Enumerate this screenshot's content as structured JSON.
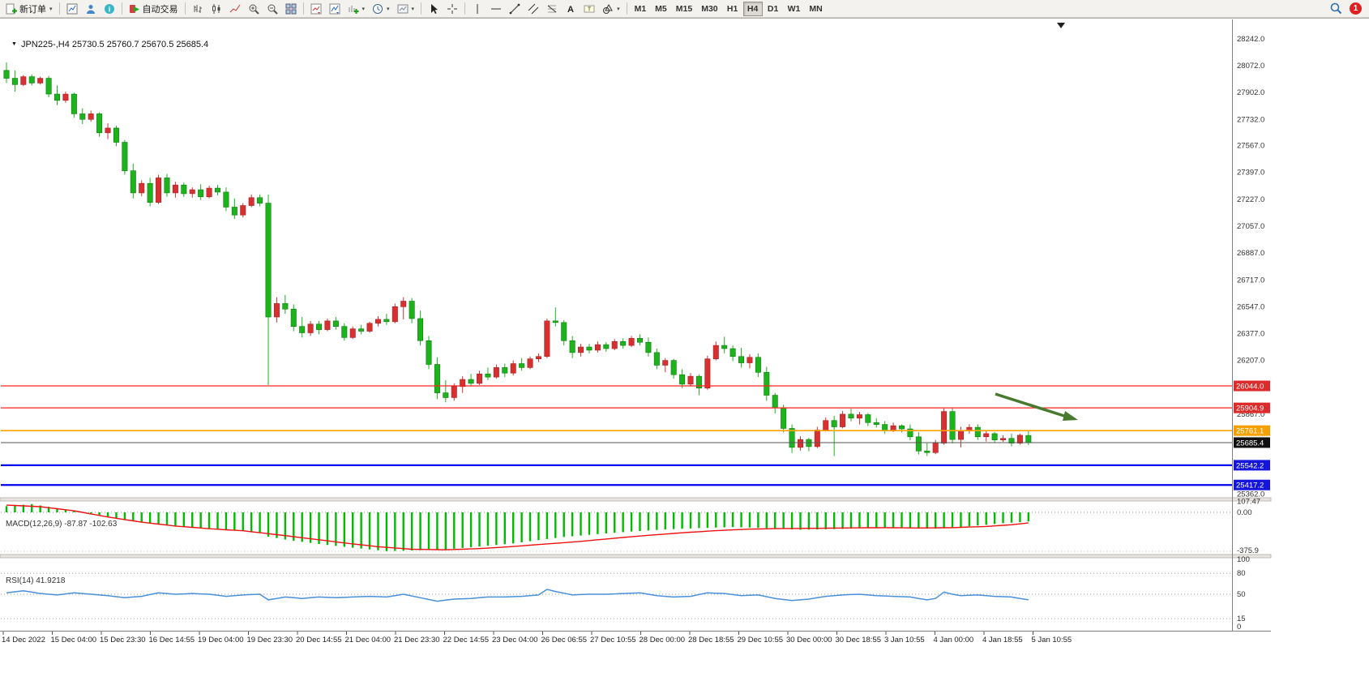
{
  "toolbar": {
    "new_order_label": "新订单",
    "auto_trading_label": "自动交易",
    "timeframes": [
      "M1",
      "M5",
      "M15",
      "M30",
      "H1",
      "H4",
      "D1",
      "W1",
      "MN"
    ],
    "active_timeframe": "H4",
    "notification_count": "1"
  },
  "chart_data": {
    "type": "candlestick",
    "header": "JPN225-,H4  25730.5 25760.7 25670.5 25685.4",
    "symbol": "JPN225-",
    "timeframe": "H4",
    "ohlc_current": {
      "open": 25730.5,
      "high": 25760.7,
      "low": 25670.5,
      "close": 25685.4
    },
    "up_color": "#d83030",
    "down_color": "#1db31d",
    "arrow_color": "#477a2d",
    "price_axis": [
      28242,
      28072,
      27902,
      27732,
      27567,
      27397,
      27227,
      27057,
      26887,
      26717,
      26547,
      26377,
      26207,
      25867,
      25362
    ],
    "hlines": [
      {
        "price": 26044.0,
        "label": "26044.0",
        "color": "#ff2222",
        "badge": "#dd2a2a",
        "width": 1.3
      },
      {
        "price": 25904.9,
        "label": "25904.9",
        "color": "#ff2222",
        "badge": "#dd2a2a",
        "width": 1.3
      },
      {
        "price": 25761.1,
        "label": "25761.1",
        "color": "#ffa200",
        "badge": "#f5a000",
        "width": 1.6
      },
      {
        "price": 25542.2,
        "label": "25542.2",
        "color": "#0000ee",
        "badge": "#1515dd",
        "width": 2.2
      },
      {
        "price": 25417.2,
        "label": "25417.2",
        "color": "#0000ee",
        "badge": "#1515dd",
        "width": 2.2
      }
    ],
    "bid_line": {
      "price": 25685.4,
      "label": "25685.4",
      "line_color": "#555555",
      "badge": "#101010"
    },
    "time_labels": [
      "14 Dec 2022",
      "15 Dec 04:00",
      "15 Dec 23:30",
      "16 Dec 14:55",
      "19 Dec 04:00",
      "19 Dec 23:30",
      "20 Dec 14:55",
      "21 Dec 04:00",
      "21 Dec 23:30",
      "22 Dec 14:55",
      "23 Dec 04:00",
      "26 Dec 06:55",
      "27 Dec 10:55",
      "28 Dec 00:00",
      "28 Dec 18:55",
      "29 Dec 10:55",
      "30 Dec 00:00",
      "30 Dec 18:55",
      "3 Jan 10:55",
      "4 Jan 00:00",
      "4 Jan 18:55",
      "5 Jan 10:55"
    ],
    "ohlc": [
      [
        28040,
        28090,
        27960,
        27990
      ],
      [
        27990,
        28040,
        27905,
        27950
      ],
      [
        27950,
        28010,
        27940,
        28000
      ],
      [
        28000,
        28015,
        27945,
        27960
      ],
      [
        27960,
        28000,
        27950,
        27990
      ],
      [
        27990,
        28005,
        27870,
        27890
      ],
      [
        27890,
        27945,
        27820,
        27850
      ],
      [
        27850,
        27905,
        27835,
        27890
      ],
      [
        27890,
        27900,
        27740,
        27765
      ],
      [
        27765,
        27800,
        27700,
        27730
      ],
      [
        27730,
        27785,
        27715,
        27765
      ],
      [
        27765,
        27775,
        27620,
        27645
      ],
      [
        27645,
        27705,
        27605,
        27675
      ],
      [
        27675,
        27690,
        27560,
        27585
      ],
      [
        27585,
        27600,
        27380,
        27405
      ],
      [
        27405,
        27450,
        27230,
        27265
      ],
      [
        27265,
        27345,
        27245,
        27325
      ],
      [
        27325,
        27360,
        27180,
        27205
      ],
      [
        27205,
        27380,
        27195,
        27360
      ],
      [
        27360,
        27385,
        27240,
        27265
      ],
      [
        27265,
        27335,
        27235,
        27315
      ],
      [
        27315,
        27330,
        27240,
        27260
      ],
      [
        27260,
        27300,
        27235,
        27285
      ],
      [
        27285,
        27320,
        27220,
        27240
      ],
      [
        27240,
        27310,
        27230,
        27295
      ],
      [
        27295,
        27315,
        27250,
        27270
      ],
      [
        27270,
        27300,
        27150,
        27175
      ],
      [
        27175,
        27230,
        27100,
        27125
      ],
      [
        27125,
        27200,
        27110,
        27185
      ],
      [
        27185,
        27255,
        27175,
        27235
      ],
      [
        27235,
        27255,
        27180,
        27200
      ],
      [
        27200,
        27255,
        26050,
        26480
      ],
      [
        26480,
        26605,
        26445,
        26565
      ],
      [
        26565,
        26620,
        26500,
        26530
      ],
      [
        26530,
        26560,
        26390,
        26420
      ],
      [
        26420,
        26480,
        26350,
        26380
      ],
      [
        26380,
        26455,
        26360,
        26435
      ],
      [
        26435,
        26455,
        26370,
        26400
      ],
      [
        26400,
        26470,
        26390,
        26455
      ],
      [
        26455,
        26480,
        26400,
        26420
      ],
      [
        26420,
        26440,
        26330,
        26350
      ],
      [
        26350,
        26420,
        26340,
        26405
      ],
      [
        26405,
        26430,
        26370,
        26390
      ],
      [
        26390,
        26450,
        26380,
        26440
      ],
      [
        26440,
        26485,
        26420,
        26465
      ],
      [
        26465,
        26500,
        26430,
        26450
      ],
      [
        26450,
        26565,
        26440,
        26545
      ],
      [
        26545,
        26605,
        26465,
        26580
      ],
      [
        26580,
        26600,
        26440,
        26470
      ],
      [
        26470,
        26520,
        26300,
        26330
      ],
      [
        26330,
        26360,
        26150,
        26180
      ],
      [
        26180,
        26225,
        25960,
        26000
      ],
      [
        26000,
        26080,
        25940,
        25970
      ],
      [
        25970,
        26060,
        25950,
        26040
      ],
      [
        26040,
        26105,
        26000,
        26085
      ],
      [
        26085,
        26120,
        26040,
        26060
      ],
      [
        26060,
        26140,
        26050,
        26120
      ],
      [
        26120,
        26160,
        26080,
        26100
      ],
      [
        26100,
        26180,
        26090,
        26160
      ],
      [
        26160,
        26185,
        26100,
        26125
      ],
      [
        26125,
        26205,
        26110,
        26185
      ],
      [
        26185,
        26220,
        26140,
        26160
      ],
      [
        26160,
        26230,
        26150,
        26215
      ],
      [
        26215,
        26250,
        26195,
        26230
      ],
      [
        26230,
        26470,
        26220,
        26455
      ],
      [
        26455,
        26540,
        26420,
        26445
      ],
      [
        26445,
        26460,
        26300,
        26330
      ],
      [
        26330,
        26360,
        26220,
        26255
      ],
      [
        26255,
        26310,
        26230,
        26290
      ],
      [
        26290,
        26310,
        26250,
        26270
      ],
      [
        26270,
        26325,
        26255,
        26305
      ],
      [
        26305,
        26320,
        26260,
        26280
      ],
      [
        26280,
        26340,
        26270,
        26325
      ],
      [
        26325,
        26345,
        26280,
        26300
      ],
      [
        26300,
        26360,
        26290,
        26345
      ],
      [
        26345,
        26370,
        26300,
        26320
      ],
      [
        26320,
        26350,
        26230,
        26255
      ],
      [
        26255,
        26280,
        26150,
        26175
      ],
      [
        26175,
        26220,
        26130,
        26205
      ],
      [
        26205,
        26215,
        26090,
        26115
      ],
      [
        26115,
        26150,
        26030,
        26055
      ],
      [
        26055,
        26125,
        26040,
        26105
      ],
      [
        26105,
        26115,
        25985,
        26030
      ],
      [
        26030,
        26235,
        26020,
        26215
      ],
      [
        26215,
        26325,
        26205,
        26300
      ],
      [
        26300,
        26355,
        26250,
        26280
      ],
      [
        26280,
        26300,
        26200,
        26230
      ],
      [
        26230,
        26285,
        26160,
        26190
      ],
      [
        26190,
        26245,
        26155,
        26225
      ],
      [
        26225,
        26250,
        26100,
        26130
      ],
      [
        26130,
        26165,
        25950,
        25985
      ],
      [
        25985,
        26000,
        25870,
        25905
      ],
      [
        25905,
        25925,
        25750,
        25775
      ],
      [
        25775,
        25800,
        25620,
        25655
      ],
      [
        25655,
        25725,
        25635,
        25705
      ],
      [
        25705,
        25715,
        25630,
        25660
      ],
      [
        25660,
        25785,
        25650,
        25765
      ],
      [
        25765,
        25845,
        25755,
        25825
      ],
      [
        25825,
        25855,
        25600,
        25785
      ],
      [
        25785,
        25885,
        25775,
        25865
      ],
      [
        25865,
        25900,
        25820,
        25840
      ],
      [
        25840,
        25880,
        25800,
        25862
      ],
      [
        25862,
        25872,
        25790,
        25812
      ],
      [
        25812,
        25840,
        25780,
        25800
      ],
      [
        25800,
        25822,
        25740,
        25762
      ],
      [
        25762,
        25812,
        25752,
        25792
      ],
      [
        25792,
        25800,
        25750,
        25772
      ],
      [
        25772,
        25800,
        25700,
        25722
      ],
      [
        25722,
        25752,
        25610,
        25632
      ],
      [
        25632,
        25682,
        25600,
        25622
      ],
      [
        25622,
        25702,
        25612,
        25682
      ],
      [
        25682,
        25902,
        25672,
        25882
      ],
      [
        25882,
        25905,
        25680,
        25705
      ],
      [
        25705,
        25785,
        25655,
        25762
      ],
      [
        25762,
        25802,
        25742,
        25782
      ],
      [
        25782,
        25802,
        25702,
        25722
      ],
      [
        25722,
        25762,
        25692,
        25742
      ],
      [
        25742,
        25752,
        25682,
        25702
      ],
      [
        25702,
        25732,
        25690,
        25712
      ],
      [
        25712,
        25742,
        25662,
        25682
      ],
      [
        25682,
        25742,
        25672,
        25732
      ],
      [
        25730.5,
        25760.7,
        25670.5,
        25685.4
      ]
    ],
    "macd": {
      "label": "MACD(12,26,9) -87.87 -102.63",
      "main_value": -87.87,
      "signal_value": -102.63,
      "scale_labels": [
        "107.47",
        "0.00",
        "-375.9"
      ],
      "histogram_color": "#00bb00",
      "signal_color": "#ee1111",
      "histogram_points": [
        [
          0,
          60
        ],
        [
          3,
          80
        ],
        [
          6,
          40
        ],
        [
          10,
          -10
        ],
        [
          14,
          -70
        ],
        [
          18,
          -115
        ],
        [
          22,
          -145
        ],
        [
          26,
          -165
        ],
        [
          30,
          -195
        ],
        [
          31,
          -235
        ],
        [
          34,
          -275
        ],
        [
          38,
          -315
        ],
        [
          42,
          -350
        ],
        [
          45,
          -375
        ],
        [
          48,
          -368
        ],
        [
          52,
          -358
        ],
        [
          56,
          -330
        ],
        [
          60,
          -300
        ],
        [
          63,
          -268
        ],
        [
          66,
          -238
        ],
        [
          70,
          -210
        ],
        [
          74,
          -185
        ],
        [
          78,
          -165
        ],
        [
          82,
          -152
        ],
        [
          86,
          -142
        ],
        [
          90,
          -152
        ],
        [
          94,
          -168
        ],
        [
          98,
          -162
        ],
        [
          102,
          -152
        ],
        [
          106,
          -152
        ],
        [
          110,
          -158
        ],
        [
          113,
          -142
        ],
        [
          116,
          -120
        ],
        [
          118,
          -105
        ],
        [
          120,
          -95
        ],
        [
          121,
          -87.87
        ]
      ],
      "signal_points": [
        [
          0,
          70
        ],
        [
          4,
          55
        ],
        [
          8,
          15
        ],
        [
          12,
          -45
        ],
        [
          16,
          -95
        ],
        [
          20,
          -132
        ],
        [
          24,
          -158
        ],
        [
          28,
          -178
        ],
        [
          32,
          -215
        ],
        [
          36,
          -255
        ],
        [
          40,
          -295
        ],
        [
          44,
          -332
        ],
        [
          48,
          -356
        ],
        [
          52,
          -362
        ],
        [
          56,
          -350
        ],
        [
          60,
          -330
        ],
        [
          64,
          -305
        ],
        [
          68,
          -280
        ],
        [
          72,
          -250
        ],
        [
          76,
          -222
        ],
        [
          80,
          -197
        ],
        [
          84,
          -177
        ],
        [
          88,
          -162
        ],
        [
          92,
          -156
        ],
        [
          96,
          -154
        ],
        [
          100,
          -150
        ],
        [
          104,
          -148
        ],
        [
          108,
          -151
        ],
        [
          112,
          -148
        ],
        [
          116,
          -136
        ],
        [
          119,
          -120
        ],
        [
          121,
          -102.63
        ]
      ]
    },
    "rsi": {
      "label": "RSI(14) 41.9218",
      "value": 41.9218,
      "scale": [
        100,
        80,
        50,
        15,
        0
      ],
      "levels": [
        80,
        50,
        15
      ],
      "line_color": "#4a90d9",
      "points": [
        [
          0,
          52
        ],
        [
          2,
          55
        ],
        [
          4,
          51
        ],
        [
          6,
          49
        ],
        [
          8,
          52
        ],
        [
          10,
          50
        ],
        [
          12,
          48
        ],
        [
          14,
          45
        ],
        [
          16,
          47
        ],
        [
          18,
          52
        ],
        [
          20,
          50
        ],
        [
          22,
          51
        ],
        [
          24,
          50
        ],
        [
          26,
          47
        ],
        [
          28,
          49
        ],
        [
          30,
          50
        ],
        [
          31,
          42
        ],
        [
          33,
          46
        ],
        [
          35,
          44
        ],
        [
          37,
          46
        ],
        [
          39,
          45
        ],
        [
          41,
          46
        ],
        [
          43,
          47
        ],
        [
          45,
          46
        ],
        [
          47,
          50
        ],
        [
          49,
          45
        ],
        [
          51,
          40
        ],
        [
          53,
          43
        ],
        [
          55,
          44
        ],
        [
          57,
          46
        ],
        [
          59,
          46
        ],
        [
          61,
          47
        ],
        [
          63,
          49
        ],
        [
          64,
          57
        ],
        [
          65,
          54
        ],
        [
          67,
          49
        ],
        [
          69,
          50
        ],
        [
          71,
          50
        ],
        [
          73,
          51
        ],
        [
          75,
          52
        ],
        [
          77,
          48
        ],
        [
          79,
          46
        ],
        [
          81,
          47
        ],
        [
          83,
          52
        ],
        [
          85,
          51
        ],
        [
          87,
          48
        ],
        [
          89,
          49
        ],
        [
          91,
          44
        ],
        [
          93,
          41
        ],
        [
          95,
          43
        ],
        [
          97,
          47
        ],
        [
          99,
          49
        ],
        [
          101,
          50
        ],
        [
          103,
          48
        ],
        [
          105,
          47
        ],
        [
          107,
          46
        ],
        [
          109,
          42
        ],
        [
          110,
          44
        ],
        [
          111,
          53
        ],
        [
          112,
          50
        ],
        [
          113,
          48
        ],
        [
          115,
          49
        ],
        [
          117,
          47
        ],
        [
          119,
          46
        ],
        [
          121,
          42
        ]
      ]
    }
  }
}
